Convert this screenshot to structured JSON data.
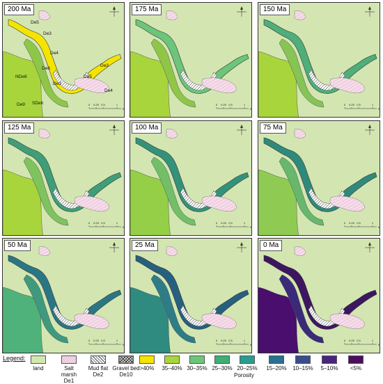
{
  "panels": [
    {
      "title": "200 Ma",
      "channel": "#f5e400",
      "side": "#a8d53c",
      "mid": "#8fc648",
      "labels": [
        "De5",
        "De3",
        "De4",
        "De6",
        "De3",
        "De5",
        "De3",
        "De4",
        "NDe8",
        "De9",
        "SDe6"
      ]
    },
    {
      "title": "175 Ma",
      "channel": "#6cc57a",
      "side": "#a8d53c",
      "mid": "#8fc648"
    },
    {
      "title": "150 Ma",
      "channel": "#4fae7a",
      "side": "#a8d53c",
      "mid": "#86c455"
    },
    {
      "title": "125 Ma",
      "channel": "#3f9e78",
      "side": "#a8d53c",
      "mid": "#7fc35e"
    },
    {
      "title": "100 Ma",
      "channel": "#35927a",
      "side": "#94cf47",
      "mid": "#72bf68"
    },
    {
      "title": "75 Ma",
      "channel": "#2f8a7b",
      "side": "#8fcb52",
      "mid": "#67b86c"
    },
    {
      "title": "50 Ma",
      "channel": "#2b7684",
      "side": "#4fb27a",
      "mid": "#3f9a7d"
    },
    {
      "title": "25 Ma",
      "channel": "#27607f",
      "side": "#2f8a80",
      "mid": "#2e7c86"
    },
    {
      "title": "0 Ma",
      "channel": "#3d1660",
      "side": "#4a0e6e",
      "mid": "#3a2a7a"
    }
  ],
  "scale": {
    "ticks": [
      "0",
      "0.25",
      "0.5",
      "1"
    ],
    "unit": "Km"
  },
  "legend": {
    "title": "Legend:",
    "items": [
      {
        "label": "land",
        "color": "#d3e6b2",
        "pattern": "none"
      },
      {
        "label": "Salt marsh De1",
        "color": "#f6dbe9",
        "pattern": "marsh"
      },
      {
        "label": "Mud flat De2",
        "color": "#b0b0b0",
        "pattern": "hatch"
      },
      {
        "label": "Gravel bed De10",
        "color": "#888888",
        "pattern": "cross"
      }
    ],
    "porosity": [
      {
        "label": ">40%",
        "color": "#f5e400"
      },
      {
        "label": "35–40%",
        "color": "#a8d53c"
      },
      {
        "label": "30–35%",
        "color": "#6cc57a"
      },
      {
        "label": "25–30%",
        "color": "#3fae72"
      },
      {
        "label": "20–25%",
        "color": "#2a9c8d"
      },
      {
        "label": "15–20%",
        "color": "#2c6f8f"
      },
      {
        "label": "10–15%",
        "color": "#3a4c8a"
      },
      {
        "label": "5–10%",
        "color": "#48257a"
      },
      {
        "label": "<5%",
        "color": "#4a0e5c"
      }
    ],
    "porosity_title": "Porosity"
  }
}
